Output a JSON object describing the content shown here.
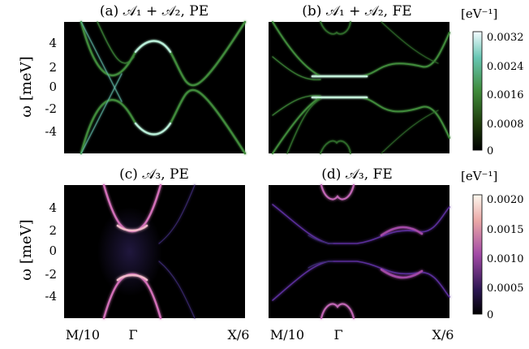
{
  "figure": {
    "ylabel_top": "ω [meV]",
    "ylabel_bottom": "ω [meV]",
    "xtick_labels": [
      "M/10",
      "Γ",
      "X/6"
    ]
  },
  "chart_data": [
    {
      "type": "heatmap",
      "panel": "a",
      "title": "(a) 𝒜₁ + 𝒜₂, PE",
      "ylabel": "ω [meV]",
      "yticks": [
        4,
        2,
        0,
        -2,
        -4
      ],
      "ylim": [
        -6,
        6
      ],
      "xticks": [
        "M/10",
        "Γ",
        "X/6"
      ],
      "colorscale": "green",
      "description": "two symmetric dispersive bands crossing above and below zero"
    },
    {
      "type": "heatmap",
      "panel": "b",
      "title": "(b) 𝒜₁ + 𝒜₂, FE",
      "ylabel": "ω [meV]",
      "yticks": [
        4,
        2,
        0,
        -2,
        -4
      ],
      "ylim": [
        -6,
        6
      ],
      "xticks": [
        "M/10",
        "Γ",
        "X/6"
      ],
      "colorscale": "green",
      "colorbar": {
        "unit": "[eV⁻¹]",
        "ticks": [
          "0.0032",
          "0.0024",
          "0.0016",
          "0.0008",
          "0"
        ],
        "range": [
          0,
          0.0032
        ]
      }
    },
    {
      "type": "heatmap",
      "panel": "c",
      "title": "(c) 𝒜₃, PE",
      "ylabel": "ω [meV]",
      "yticks": [
        4,
        2,
        0,
        -2,
        -4
      ],
      "ylim": [
        -6,
        6
      ],
      "xticks": [
        "M/10",
        "Γ",
        "X/6"
      ],
      "colorscale": "magenta"
    },
    {
      "type": "heatmap",
      "panel": "d",
      "title": "(d) 𝒜₃, FE",
      "ylabel": "ω [meV]",
      "yticks": [
        4,
        2,
        0,
        -2,
        -4
      ],
      "ylim": [
        -6,
        6
      ],
      "xticks": [
        "M/10",
        "Γ",
        "X/6"
      ],
      "colorscale": "magenta",
      "colorbar": {
        "unit": "[eV⁻¹]",
        "ticks": [
          "0.0020",
          "0.0015",
          "0.0010",
          "0.0005",
          "0"
        ],
        "range": [
          0,
          0.002
        ]
      }
    }
  ]
}
